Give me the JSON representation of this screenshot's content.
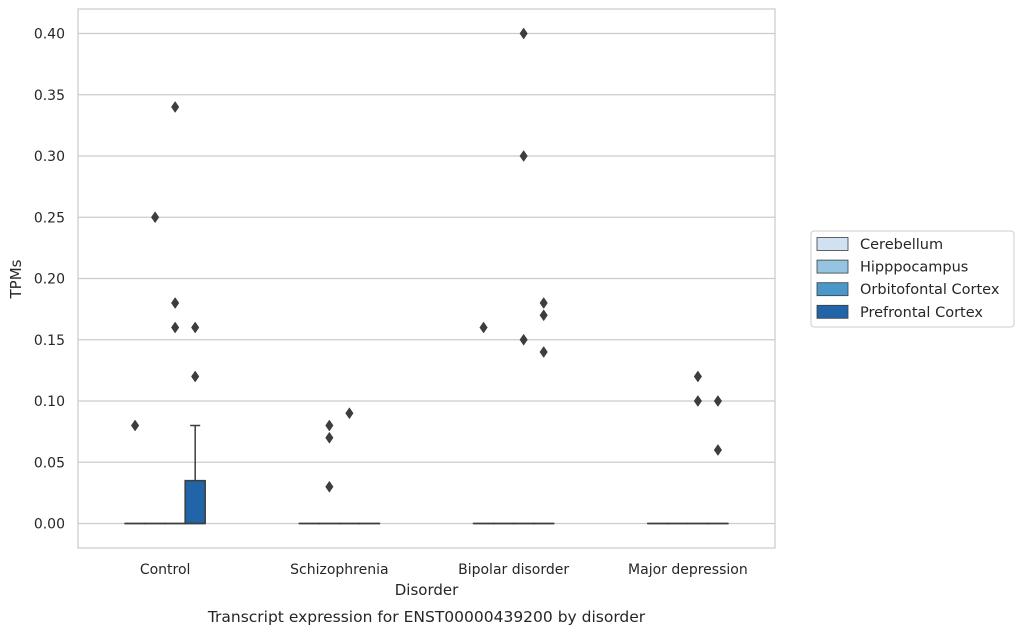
{
  "chart_data": {
    "type": "box",
    "title": "",
    "caption": "Transcript expression for ENST00000439200 by disorder",
    "xlabel": "Disorder",
    "ylabel": "TPMs",
    "ylim": [
      -0.02,
      0.42
    ],
    "yticks": [
      0.0,
      0.05,
      0.1,
      0.15,
      0.2,
      0.25,
      0.3,
      0.35,
      0.4
    ],
    "ytick_labels": [
      "0.00",
      "0.05",
      "0.10",
      "0.15",
      "0.20",
      "0.25",
      "0.30",
      "0.35",
      "0.40"
    ],
    "grid": "horizontal",
    "legend_position": "right",
    "categories": [
      "Control",
      "Schizophrenia",
      "Bipolar disorder",
      "Major depression"
    ],
    "series": [
      {
        "name": "Cerebellum",
        "color": "#d0e1f2",
        "boxes": [
          {
            "q1": 0,
            "median": 0,
            "q3": 0,
            "whisker_low": 0,
            "whisker_high": 0,
            "outliers": [
              0.08
            ]
          },
          {
            "q1": 0,
            "median": 0,
            "q3": 0,
            "whisker_low": 0,
            "whisker_high": 0,
            "outliers": []
          },
          {
            "q1": 0,
            "median": 0,
            "q3": 0,
            "whisker_low": 0,
            "whisker_high": 0,
            "outliers": [
              0.16
            ]
          },
          {
            "q1": 0,
            "median": 0,
            "q3": 0,
            "whisker_low": 0,
            "whisker_high": 0,
            "outliers": []
          }
        ]
      },
      {
        "name": "Hipppocampus",
        "color": "#94c4df",
        "boxes": [
          {
            "q1": 0,
            "median": 0,
            "q3": 0,
            "whisker_low": 0,
            "whisker_high": 0,
            "outliers": [
              0.25
            ]
          },
          {
            "q1": 0,
            "median": 0,
            "q3": 0,
            "whisker_low": 0,
            "whisker_high": 0,
            "outliers": [
              0.03,
              0.07,
              0.08
            ]
          },
          {
            "q1": 0,
            "median": 0,
            "q3": 0,
            "whisker_low": 0,
            "whisker_high": 0,
            "outliers": []
          },
          {
            "q1": 0,
            "median": 0,
            "q3": 0,
            "whisker_low": 0,
            "whisker_high": 0,
            "outliers": []
          }
        ]
      },
      {
        "name": "Orbitofontal Cortex",
        "color": "#4a98c9",
        "boxes": [
          {
            "q1": 0,
            "median": 0,
            "q3": 0,
            "whisker_low": 0,
            "whisker_high": 0,
            "outliers": [
              0.16,
              0.18,
              0.34
            ]
          },
          {
            "q1": 0,
            "median": 0,
            "q3": 0,
            "whisker_low": 0,
            "whisker_high": 0,
            "outliers": [
              0.09
            ]
          },
          {
            "q1": 0,
            "median": 0,
            "q3": 0,
            "whisker_low": 0,
            "whisker_high": 0,
            "outliers": [
              0.15,
              0.3,
              0.4
            ]
          },
          {
            "q1": 0,
            "median": 0,
            "q3": 0,
            "whisker_low": 0,
            "whisker_high": 0,
            "outliers": [
              0.1,
              0.12
            ]
          }
        ]
      },
      {
        "name": "Prefrontal Cortex",
        "color": "#2264a8",
        "boxes": [
          {
            "q1": 0,
            "median": 0,
            "q3": 0.035,
            "whisker_low": 0,
            "whisker_high": 0.08,
            "outliers": [
              0.12,
              0.16
            ]
          },
          {
            "q1": 0,
            "median": 0,
            "q3": 0,
            "whisker_low": 0,
            "whisker_high": 0,
            "outliers": []
          },
          {
            "q1": 0,
            "median": 0,
            "q3": 0,
            "whisker_low": 0,
            "whisker_high": 0,
            "outliers": [
              0.14,
              0.17,
              0.18
            ]
          },
          {
            "q1": 0,
            "median": 0,
            "q3": 0,
            "whisker_low": 0,
            "whisker_high": 0,
            "outliers": [
              0.06,
              0.1
            ]
          }
        ]
      }
    ]
  }
}
